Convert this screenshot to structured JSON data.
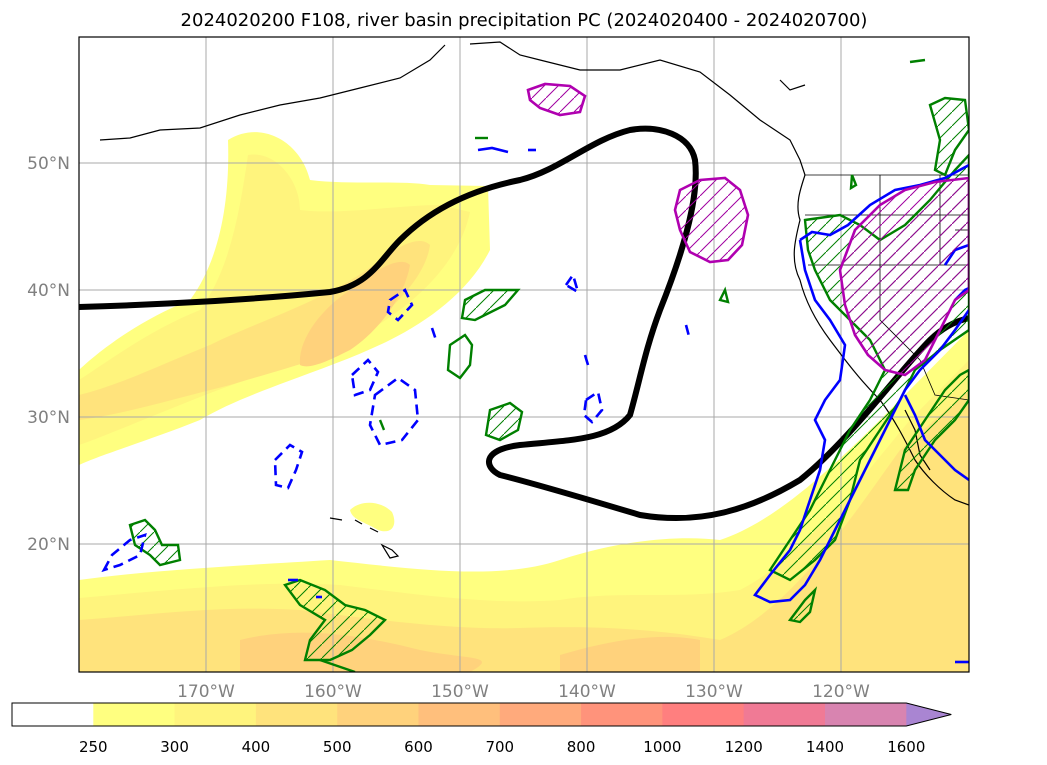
{
  "chart_data": {
    "type": "map-contour",
    "title": "2024020200 F108, river basin precipitation PC (2024020400 - 2024020700)",
    "projection": "PlateCarree",
    "extent": {
      "lon_min": -180,
      "lon_max": -110,
      "lat_min": 10,
      "lat_max": 60
    },
    "grid": true,
    "lat_ticks": [
      {
        "value": 20,
        "label": "20°N"
      },
      {
        "value": 30,
        "label": "30°N"
      },
      {
        "value": 40,
        "label": "40°N"
      },
      {
        "value": 50,
        "label": "50°N"
      }
    ],
    "lon_ticks": [
      {
        "value": -170,
        "label": "170°W"
      },
      {
        "value": -160,
        "label": "160°W"
      },
      {
        "value": -150,
        "label": "150°W"
      },
      {
        "value": -140,
        "label": "140°W"
      },
      {
        "value": -130,
        "label": "130°W"
      },
      {
        "value": -120,
        "label": "120°W"
      }
    ],
    "colorbar": {
      "extend": "max",
      "levels": [
        250,
        300,
        400,
        500,
        600,
        700,
        800,
        1000,
        1200,
        1400,
        1600
      ],
      "labels": [
        "250",
        "300",
        "400",
        "500",
        "600",
        "700",
        "800",
        "1000",
        "1200",
        "1400",
        "1600"
      ],
      "colors": [
        "#ffff80",
        "#fff47d",
        "#ffe37c",
        "#ffd27c",
        "#ffbf7c",
        "#ffaa7c",
        "#ff937b",
        "#ff7f7f",
        "#f07a95",
        "#d884b0",
        "#bd84c6",
        "#a985d2"
      ]
    },
    "shading_colors": {
      "lvl250": "#ffff80",
      "lvl300": "#fff47d",
      "lvl400": "#ffe37c"
    },
    "contour_colors": {
      "black": "#000000",
      "green": "#008000",
      "blue": "#0000ff",
      "magenta": "#c000c0"
    }
  }
}
